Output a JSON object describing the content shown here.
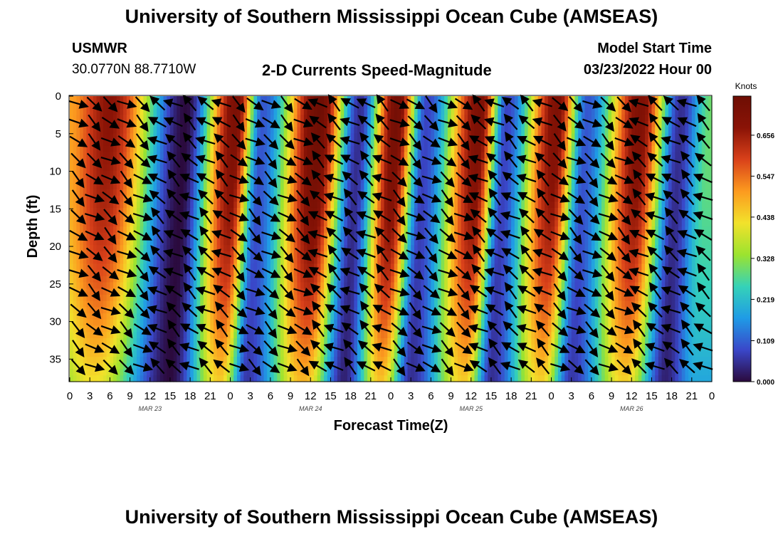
{
  "header": {
    "title": "University of Southern Mississippi Ocean Cube (AMSEAS)",
    "station_name": "USMWR",
    "station_coords": "30.0770N  88.7710W",
    "chart_title": "2-D Currents Speed-Magnitude",
    "start_label": "Model Start Time",
    "start_value": "03/23/2022 Hour 00"
  },
  "footer": {
    "title": "University of Southern Mississippi Ocean Cube (AMSEAS)"
  },
  "colors": {
    "colormap": [
      "#2b0a3d",
      "#3a47c9",
      "#1f9be6",
      "#35d2b8",
      "#9be32f",
      "#f2e22b",
      "#fc9a1f",
      "#d9411a",
      "#8a1306",
      "#6e0e04"
    ],
    "arrow": "#000000"
  },
  "chart_data": {
    "type": "heatmap",
    "title": "2-D Currents Speed-Magnitude",
    "xlabel": "Forecast Time(Z)",
    "ylabel": "Depth (ft)",
    "x_ticks": [
      "0",
      "3",
      "6",
      "9",
      "12",
      "15",
      "18",
      "21",
      "0",
      "3",
      "6",
      "9",
      "12",
      "15",
      "18",
      "21",
      "0",
      "3",
      "6",
      "9",
      "12",
      "15",
      "18",
      "21",
      "0",
      "3",
      "6",
      "9",
      "12",
      "15",
      "18",
      "21",
      "0"
    ],
    "x_range_hours": [
      0,
      96
    ],
    "day_labels": [
      {
        "label": "MAR 23",
        "hour": 12
      },
      {
        "label": "MAR 24",
        "hour": 36
      },
      {
        "label": "MAR 25",
        "hour": 60
      },
      {
        "label": "MAR 26",
        "hour": 84
      }
    ],
    "y_ticks": [
      0,
      5,
      10,
      15,
      20,
      25,
      30,
      35
    ],
    "y_range_ft": [
      0,
      38
    ],
    "colorbar": {
      "unit_label": "Knots",
      "range": [
        0,
        0.76
      ],
      "ticks": [
        "0.000",
        "0.109",
        "0.219",
        "0.328",
        "0.438",
        "0.547",
        "0.656"
      ]
    },
    "speed_peaks": [
      {
        "hour": 0.0,
        "max": 0.5
      },
      {
        "hour": 6.0,
        "max": 0.68
      },
      {
        "hour": 17.5,
        "max": 0.0
      },
      {
        "hour": 25.0,
        "max": 0.72
      },
      {
        "hour": 29.0,
        "max": 0.1
      },
      {
        "hour": 37.5,
        "max": 0.76
      },
      {
        "hour": 43.5,
        "max": 0.05
      },
      {
        "hour": 49.0,
        "max": 0.74
      },
      {
        "hour": 53.5,
        "max": 0.08
      },
      {
        "hour": 61.5,
        "max": 0.72
      },
      {
        "hour": 65.5,
        "max": 0.08
      },
      {
        "hour": 73.0,
        "max": 0.71
      },
      {
        "hour": 77.5,
        "max": 0.1
      },
      {
        "hour": 85.5,
        "max": 0.71
      },
      {
        "hour": 91.5,
        "max": 0.05
      },
      {
        "hour": 96.0,
        "max": 0.3
      }
    ],
    "depth_profile": "slower near bottom (depth 38 ft), fastest near surface",
    "vectors": {
      "hour_step": 2.4,
      "depth_step": 2.5,
      "note": "direction arrows; flow reverses between successive speed peaks"
    }
  }
}
